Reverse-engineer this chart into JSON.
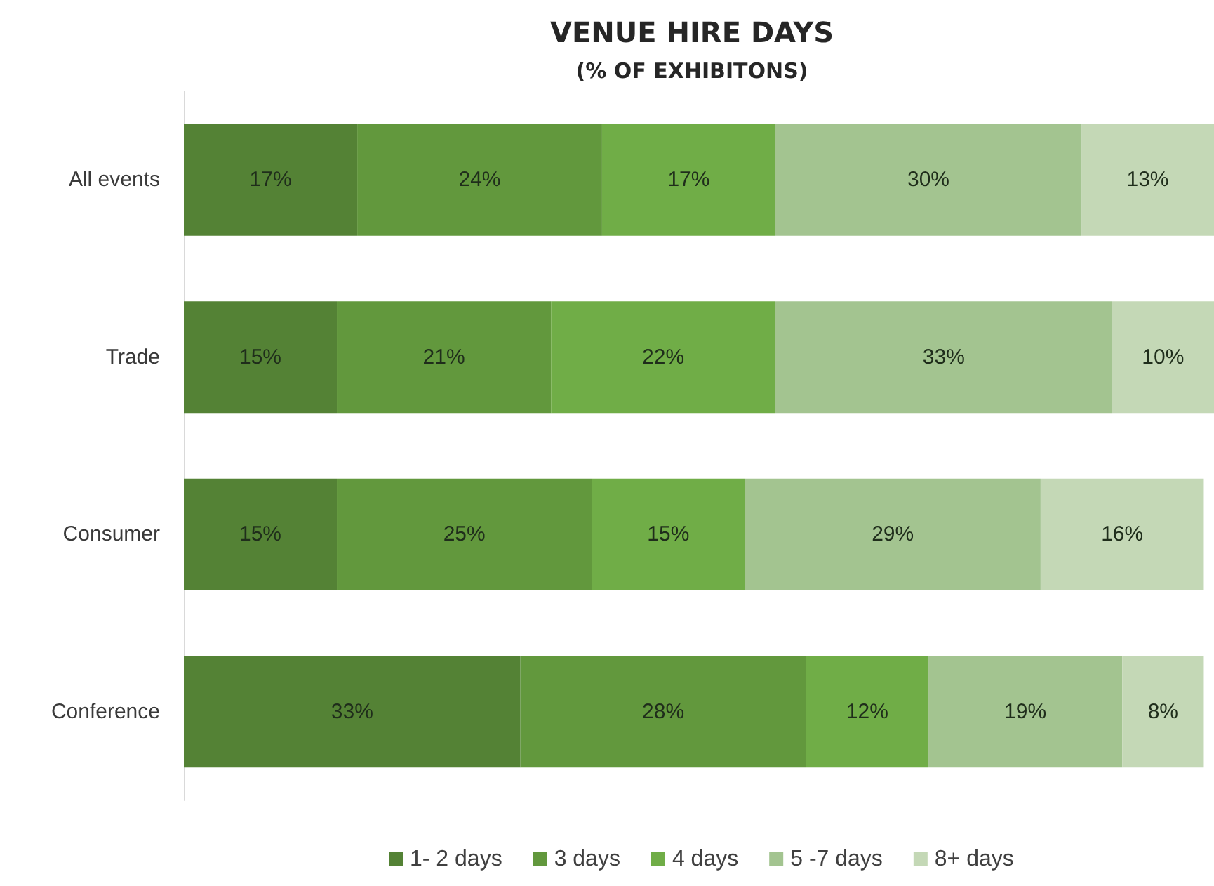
{
  "chart_data": {
    "type": "bar",
    "orientation": "horizontal",
    "stacked": true,
    "title": "VENUE HIRE DAYS",
    "subtitle": "(% OF EXHIBITONS)",
    "categories": [
      "All events",
      "Trade",
      "Consumer",
      "Conference"
    ],
    "series": [
      {
        "name": "1- 2 days",
        "color": "#548235",
        "values": [
          17,
          15,
          15,
          33
        ],
        "value_labels": [
          "17%",
          "15%",
          "15%",
          "33%"
        ]
      },
      {
        "name": "3 days",
        "color": "#62983d",
        "values": [
          24,
          21,
          25,
          28
        ],
        "value_labels": [
          "24%",
          "21%",
          "25%",
          "28%"
        ]
      },
      {
        "name": "4 days",
        "color": "#70ad47",
        "values": [
          17,
          22,
          15,
          12
        ],
        "value_labels": [
          "17%",
          "22%",
          "15%",
          "12%"
        ]
      },
      {
        "name": "5 -7 days",
        "color": "#a3c490",
        "values": [
          30,
          33,
          29,
          19
        ],
        "value_labels": [
          "30%",
          "33%",
          "29%",
          "19%"
        ]
      },
      {
        "name": "8+ days",
        "color": "#c4d8b6",
        "values": [
          13,
          10,
          16,
          8
        ],
        "value_labels": [
          "13%",
          "10%",
          "16%",
          "8%"
        ]
      }
    ],
    "legend": "bottom",
    "tick_labels": "y"
  }
}
